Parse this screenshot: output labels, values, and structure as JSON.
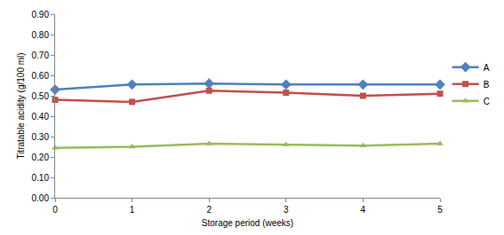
{
  "chart_data": {
    "type": "line",
    "x_label": "Storage period (weeks)",
    "y_label": "Titratable acidity (g/100 ml)",
    "x": [
      0,
      1,
      2,
      3,
      4,
      5
    ],
    "series": [
      {
        "name": "A",
        "color": "#4F81BD",
        "marker": "diamond",
        "line_style": "solid",
        "values": [
          0.53,
          0.555,
          0.56,
          0.555,
          0.555,
          0.555
        ]
      },
      {
        "name": "B",
        "color": "#C0504D",
        "marker": "square",
        "line_style": "solid",
        "values": [
          0.48,
          0.47,
          0.525,
          0.515,
          0.5,
          0.51
        ]
      },
      {
        "name": "C",
        "color": "#9BBB59",
        "marker": "triangle-up",
        "line_style": "solid",
        "values": [
          0.245,
          0.25,
          0.265,
          0.26,
          0.255,
          0.265
        ]
      }
    ],
    "xlim": [
      0,
      5
    ],
    "xticks": [
      0,
      1,
      2,
      3,
      4,
      5
    ],
    "ylim": [
      0,
      0.9
    ],
    "yticks": [
      {
        "value": 0,
        "label": "0.00"
      },
      {
        "value": 0.1,
        "label": "0.10"
      },
      {
        "value": 0.2,
        "label": "0.20"
      },
      {
        "value": 0.3,
        "label": "0.30"
      },
      {
        "value": 0.4,
        "label": "0.40"
      },
      {
        "value": 0.5,
        "label": "0.50"
      },
      {
        "value": 0.6,
        "label": "0.60"
      },
      {
        "value": 0.7,
        "label": "0.70"
      },
      {
        "value": 0.8,
        "label": "0.80"
      },
      {
        "value": 0.9,
        "label": "0.90"
      }
    ],
    "grid": false,
    "legend": "right"
  }
}
